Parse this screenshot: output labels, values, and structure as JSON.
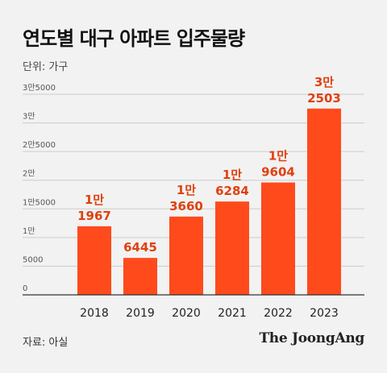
{
  "header": {
    "title": "연도별 대구 아파트 입주물량",
    "unit": "단위: 가구"
  },
  "footer": {
    "source": "자료: 아실",
    "logo": "The JoongAng"
  },
  "colors": {
    "bar": "#ff4a1c",
    "label": "#e0400f",
    "grid": "#cccccc",
    "axis": "#333333"
  },
  "chart_data": {
    "type": "bar",
    "title": "연도별 대구 아파트 입주물량",
    "categories": [
      "2018",
      "2019",
      "2020",
      "2021",
      "2022",
      "2023"
    ],
    "values": [
      11967,
      6445,
      13660,
      16284,
      19604,
      32503
    ],
    "data_labels": [
      [
        "1만",
        "1967"
      ],
      [
        "6445"
      ],
      [
        "1만",
        "3660"
      ],
      [
        "1만",
        "6284"
      ],
      [
        "1만",
        "9604"
      ],
      [
        "3만",
        "2503"
      ]
    ],
    "yticks": [
      0,
      5000,
      10000,
      15000,
      20000,
      25000,
      30000,
      35000
    ],
    "ytick_labels": [
      "0",
      "5000",
      "1만",
      "1만5000",
      "2만",
      "2만5000",
      "3만",
      "3만5000"
    ],
    "ylim": [
      0,
      35000
    ],
    "grid": true
  }
}
